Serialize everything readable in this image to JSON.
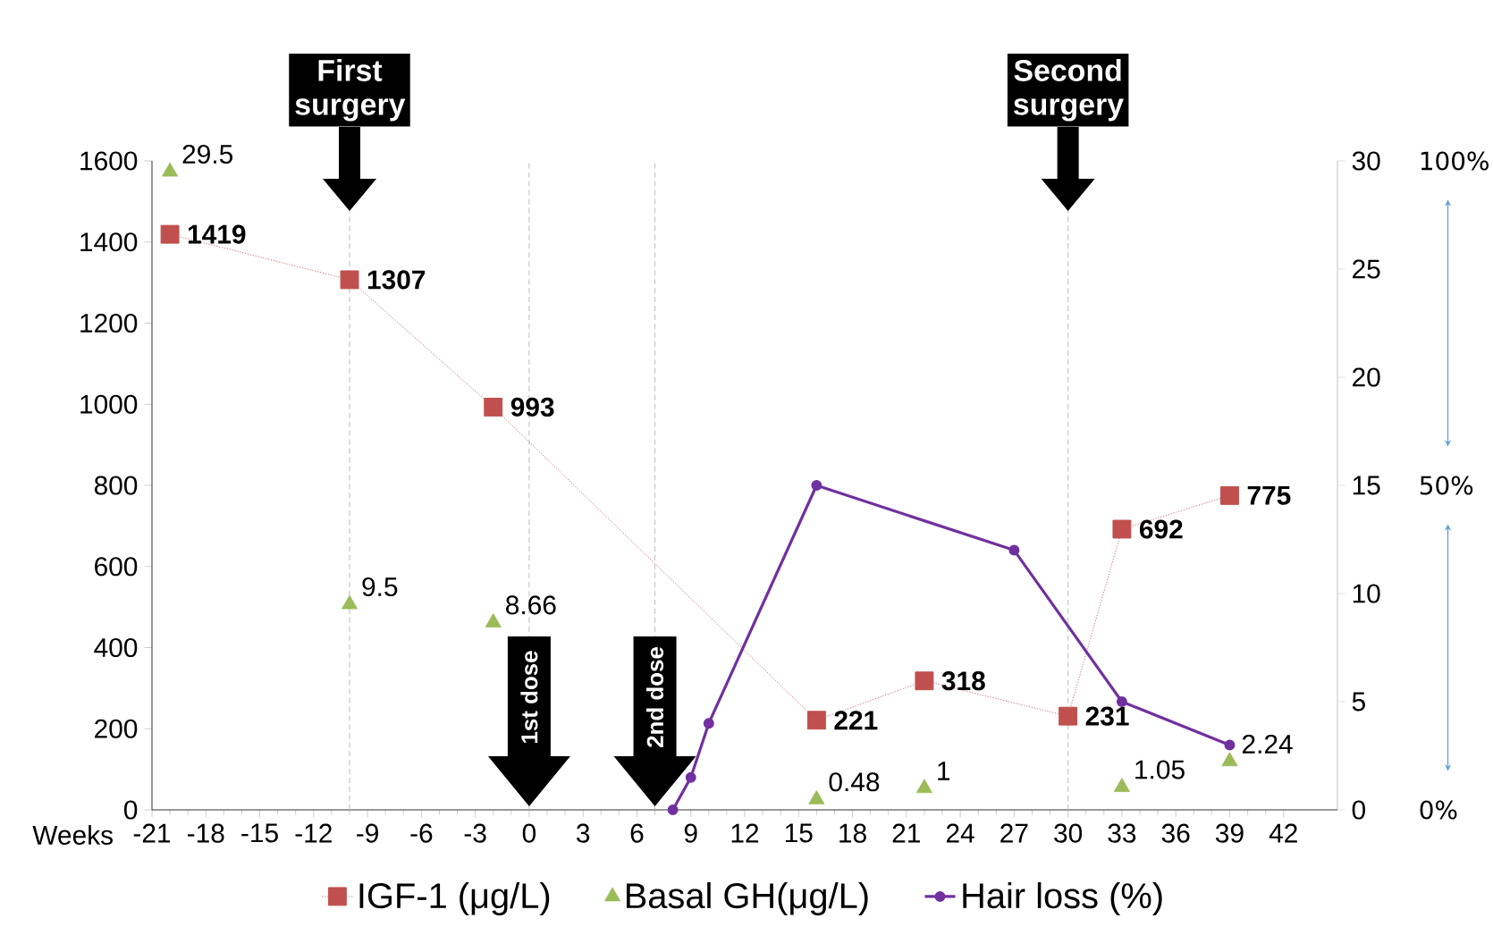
{
  "chart_data": {
    "type": "line",
    "xlabel": "Weeks",
    "xlim": [
      -21,
      45
    ],
    "xticks": [
      -21,
      -18,
      -15,
      -12,
      -9,
      -6,
      -3,
      0,
      3,
      6,
      9,
      12,
      15,
      18,
      21,
      24,
      27,
      30,
      33,
      36,
      39,
      42
    ],
    "ylim": [
      0,
      1600
    ],
    "yticks": [
      0,
      200,
      400,
      600,
      800,
      1000,
      1200,
      1400,
      1600
    ],
    "y2lim": [
      0,
      30
    ],
    "y2ticks": [
      0,
      5,
      10,
      15,
      20,
      25,
      30
    ],
    "legend": "bottom",
    "series": [
      {
        "name": "IGF-1 (μg/L)",
        "color": "#c0504d",
        "marker": "square",
        "line_style": "dotted",
        "x": [
          -20,
          -10,
          -2,
          16,
          22,
          30,
          33,
          39
        ],
        "values": [
          1419,
          1307,
          993,
          221,
          318,
          231,
          692,
          775
        ],
        "value_labels": [
          "1419",
          "1307",
          "993",
          "221",
          "318",
          "231",
          "692",
          "775"
        ]
      },
      {
        "name": "Basal GH(μg/L)",
        "type": "scatter",
        "axis": "y2",
        "color": "#9bbb59",
        "marker": "triangle",
        "x": [
          -20,
          -10,
          -2,
          16,
          22,
          33,
          39
        ],
        "values": [
          29.5,
          9.5,
          8.66,
          0.48,
          1,
          1.05,
          2.24
        ],
        "value_labels": [
          "29.5",
          "9.5",
          "8.66",
          "0.48",
          "1",
          "1.05",
          "2.24"
        ]
      },
      {
        "name": "Hair loss (%)",
        "axis": "y2",
        "color": "#7030a0",
        "marker": "circle",
        "line_style": "solid",
        "x": [
          8,
          9,
          10,
          16,
          27,
          33,
          39
        ],
        "values": [
          0,
          1.5,
          4,
          15,
          12,
          5,
          3
        ]
      }
    ],
    "ref_lines": [
      {
        "axis": "x",
        "value": -10,
        "label": "First surgery"
      },
      {
        "axis": "x",
        "value": 0,
        "label": "1st dose"
      },
      {
        "axis": "x",
        "value": 7,
        "label": "2nd dose"
      },
      {
        "axis": "x",
        "value": 30,
        "label": "Second surgery"
      }
    ],
    "annotations": [
      "100%",
      "50%",
      "0%"
    ]
  }
}
